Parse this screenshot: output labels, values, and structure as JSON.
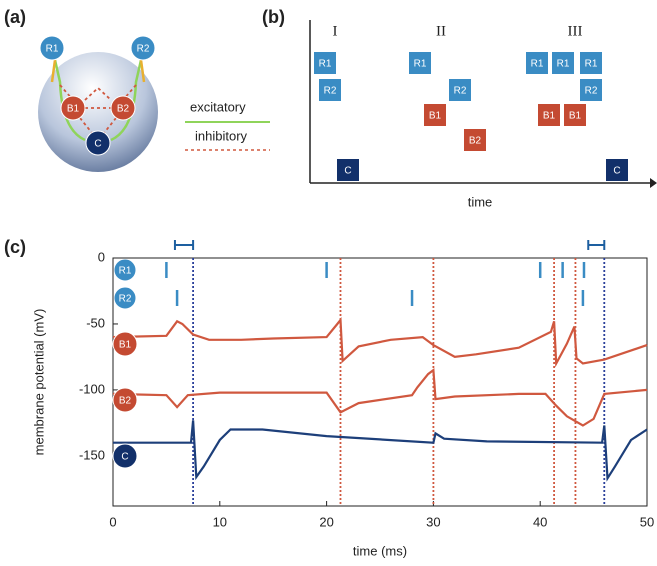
{
  "panel_a": {
    "tag": "(a)",
    "nodes": [
      "R1",
      "R2",
      "B1",
      "B2",
      "C"
    ],
    "legend": [
      "excitatory",
      "inhibitory"
    ]
  },
  "panel_b": {
    "tag": "(b)",
    "phases": [
      "I",
      "II",
      "III"
    ],
    "xlabel": "time",
    "boxes": [
      "R1",
      "R2",
      "C",
      "R1",
      "R2",
      "B1",
      "B2",
      "R1",
      "R1",
      "R1",
      "R2",
      "B1",
      "B1",
      "C"
    ]
  },
  "chart_data": {
    "type": "line",
    "tag": "(c)",
    "xlabel": "time (ms)",
    "ylabel": "membrane potential (mV)",
    "xlim": [
      0,
      50
    ],
    "xticks": [
      0,
      10,
      20,
      30,
      40,
      50
    ],
    "ylim": [
      -188,
      0
    ],
    "yticks": [
      0,
      -50,
      -100,
      -150
    ],
    "spikes": [
      {
        "name": "R1",
        "color": "#3a8cc4",
        "times": [
          5,
          20,
          40,
          42.1,
          44.1
        ]
      },
      {
        "name": "R2",
        "color": "#3a8cc4",
        "times": [
          6,
          28,
          44
        ]
      }
    ],
    "series": [
      {
        "name": "B1",
        "color": "#d0583f",
        "x": [
          0,
          5,
          6,
          6.5,
          7.5,
          9,
          12,
          15,
          20,
          21,
          21.3,
          21.5,
          23,
          26,
          29,
          30,
          32,
          34,
          38,
          41,
          41.3,
          41.5,
          42.5,
          43.2,
          43.4,
          44,
          46,
          50
        ],
        "values": [
          -60,
          -59,
          -48,
          -50,
          -58,
          -62,
          -62,
          -61,
          -60,
          -50,
          -47,
          -78,
          -67,
          -62,
          -60,
          -66,
          -75,
          -73,
          -68,
          -56,
          -48,
          -80,
          -65,
          -52,
          -76,
          -80,
          -77,
          -66
        ]
      },
      {
        "name": "B2",
        "color": "#d0583f",
        "x": [
          0,
          5,
          6,
          7,
          10,
          20,
          21.3,
          23,
          28,
          28.5,
          29.5,
          30,
          30.2,
          32,
          38,
          40.5,
          41.5,
          42.5,
          44,
          45,
          46,
          50
        ],
        "values": [
          -103,
          -104,
          -113,
          -104,
          -102,
          -102,
          -117,
          -110,
          -104,
          -98,
          -88,
          -85,
          -107,
          -105,
          -103,
          -103,
          -112,
          -120,
          -127,
          -122,
          -103,
          -100
        ]
      },
      {
        "name": "C",
        "color": "#1d3f7a",
        "x": [
          0,
          7.3,
          7.5,
          7.8,
          8.5,
          10,
          11,
          14,
          20,
          30,
          30.2,
          31,
          35,
          45.8,
          46,
          46.3,
          47,
          48.5,
          50
        ],
        "values": [
          -140,
          -140,
          -123,
          -166,
          -158,
          -138,
          -130,
          -130,
          -135,
          -140,
          -133,
          -137,
          -139,
          -140,
          -127,
          -167,
          -158,
          -138,
          -130
        ]
      }
    ],
    "markers": [
      {
        "x": 7.5,
        "color": "#2a3f9a"
      },
      {
        "x": 21.3,
        "color": "#d0583f"
      },
      {
        "x": 30,
        "color": "#d0583f"
      },
      {
        "x": 41.3,
        "color": "#d0583f"
      },
      {
        "x": 43.3,
        "color": "#d0583f"
      },
      {
        "x": 46,
        "color": "#2a3f9a"
      }
    ],
    "intervals": [
      [
        5.8,
        7.5
      ],
      [
        44.5,
        46
      ]
    ]
  }
}
